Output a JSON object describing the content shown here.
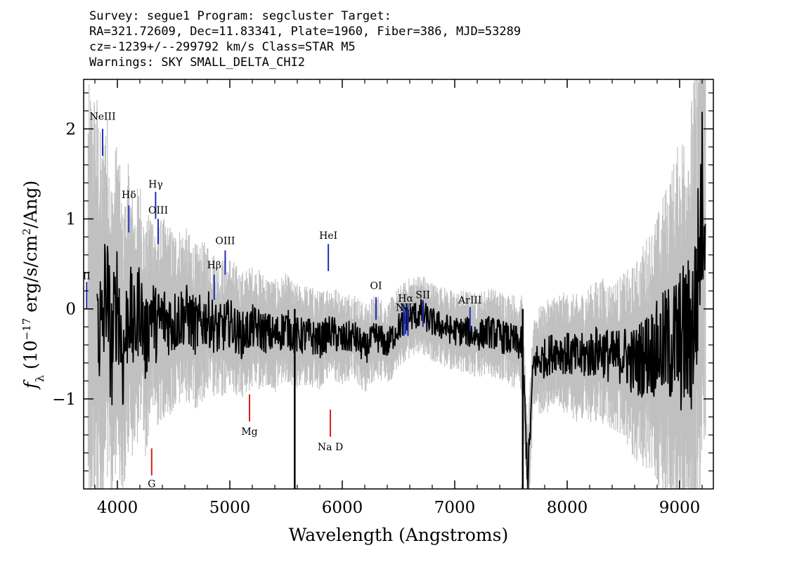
{
  "header": {
    "line1": "Survey: segue1 Program: segcluster Target:",
    "line2": "RA=321.72609, Dec=11.83341, Plate=1960, Fiber=386, MJD=53289",
    "line3": "cz=-1239+/--299792 km/s Class=STAR M5",
    "line4": "Warnings: SKY SMALL_DELTA_CHI2"
  },
  "colors": {
    "flux": "#000000",
    "error": "#c0c0c0",
    "emission_lines": "#1f2fb5",
    "absorption_lines": "#d62020",
    "background": "#ffffff"
  },
  "chart_data": {
    "type": "line",
    "xlabel": "Wavelength (Angstroms)",
    "ylabel": "fλ (10^-17 erg/s/cm²/Ang)",
    "xlim": [
      3700,
      9300
    ],
    "ylim": [
      -2.0,
      2.55
    ],
    "x_ticks": [
      4000,
      5000,
      6000,
      7000,
      8000,
      9000
    ],
    "y_ticks": [
      -1,
      0,
      1,
      2
    ],
    "x_tick_labels": [
      "4000",
      "5000",
      "6000",
      "7000",
      "8000",
      "9000"
    ],
    "y_tick_labels": [
      "−1",
      "0",
      "1",
      "2"
    ],
    "grid": false,
    "series": [
      {
        "role": "flux",
        "color": "#000000",
        "x": [
          3820,
          3860,
          3900,
          3950,
          4000,
          4050,
          4100,
          4150,
          4200,
          4250,
          4300,
          4350,
          4400,
          4500,
          4600,
          4700,
          4800,
          4900,
          5000,
          5100,
          5200,
          5300,
          5400,
          5500,
          5577,
          5700,
          5800,
          5900,
          6000,
          6100,
          6200,
          6300,
          6400,
          6500,
          6600,
          6700,
          6800,
          6900,
          7000,
          7100,
          7200,
          7300,
          7400,
          7500,
          7600,
          7650,
          7700,
          7800,
          7900,
          8000,
          8100,
          8200,
          8300,
          8400,
          8500,
          8600,
          8700,
          8800,
          8900,
          9000,
          9100,
          9150,
          9200
        ],
        "y": [
          0.1,
          -0.4,
          0.3,
          -0.5,
          0.2,
          -0.6,
          0.05,
          -0.3,
          0.1,
          -0.4,
          0.0,
          -0.2,
          -0.1,
          -0.15,
          -0.05,
          -0.2,
          -0.1,
          -0.25,
          -0.15,
          -0.3,
          -0.2,
          -0.25,
          -0.3,
          -0.2,
          -0.3,
          -0.3,
          -0.35,
          -0.25,
          -0.35,
          -0.3,
          -0.45,
          -0.3,
          -0.4,
          -0.2,
          -0.1,
          -0.05,
          -0.15,
          -0.2,
          -0.25,
          -0.25,
          -0.3,
          -0.25,
          -0.3,
          -0.35,
          -0.4,
          -1.9,
          -0.6,
          -0.55,
          -0.45,
          -0.5,
          -0.55,
          -0.5,
          -0.45,
          -0.55,
          -0.5,
          -0.6,
          -0.5,
          -0.45,
          -0.4,
          -0.35,
          -0.3,
          0.1,
          1.2
        ]
      },
      {
        "role": "error",
        "color": "#c0c0c0",
        "x": [
          3800,
          4000,
          4300,
          4600,
          5000,
          5500,
          6000,
          6500,
          7000,
          7500,
          8000,
          8500,
          8800,
          9000,
          9200
        ],
        "y": [
          1.6,
          1.2,
          0.8,
          0.65,
          0.5,
          0.4,
          0.35,
          0.3,
          0.3,
          0.35,
          0.45,
          0.6,
          1.0,
          1.5,
          2.0
        ]
      }
    ],
    "emission_lines": [
      {
        "label": "NeIII",
        "x": 3869
      },
      {
        "label": "Hδ",
        "x": 4102
      },
      {
        "label": "Hγ",
        "x": 4340
      },
      {
        "label": "OIII",
        "x": 4363
      },
      {
        "label": "Hβ",
        "x": 4861
      },
      {
        "label": "OIII",
        "x": 4959
      },
      {
        "label": "HeI",
        "x": 5876
      },
      {
        "label": "OI",
        "x": 6300
      },
      {
        "label": "NII",
        "x": 6548
      },
      {
        "label": "Hα",
        "x": 6563
      },
      {
        "label": "NII",
        "x": 6584
      },
      {
        "label": "SII",
        "x": 6717
      },
      {
        "label": "ArIII",
        "x": 7136
      },
      {
        "label": "II",
        "x": 3727
      }
    ],
    "absorption_lines": [
      {
        "label": "G",
        "x": 4305
      },
      {
        "label": "Mg",
        "x": 5175
      },
      {
        "label": "Na D",
        "x": 5894
      }
    ]
  }
}
